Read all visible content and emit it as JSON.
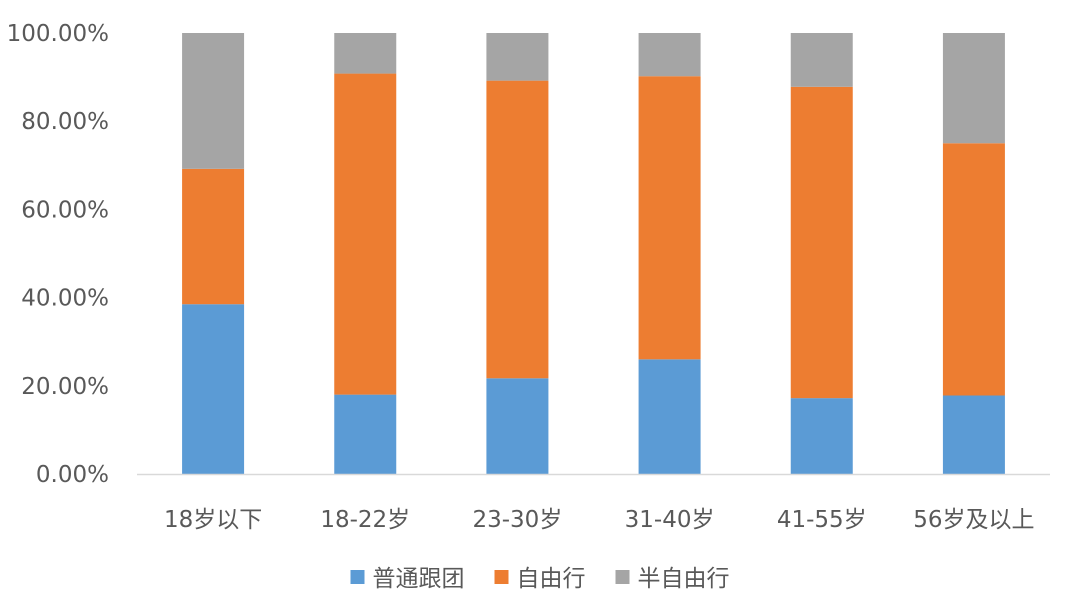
{
  "chart_data": {
    "type": "bar",
    "stacked": true,
    "categories": [
      "18岁以下",
      "18-22岁",
      "23-30岁",
      "31-40岁",
      "41-55岁",
      "56岁及以上"
    ],
    "series": [
      {
        "name": "普通跟团",
        "color": "#5b9bd5",
        "values": [
          38.5,
          18.0,
          21.7,
          26.0,
          17.2,
          17.8
        ]
      },
      {
        "name": "自由行",
        "color": "#ed7d31",
        "values": [
          30.7,
          72.8,
          67.5,
          64.2,
          70.6,
          57.2
        ]
      },
      {
        "name": "半自由行",
        "color": "#a5a5a5",
        "values": [
          30.8,
          9.2,
          10.8,
          9.8,
          12.2,
          25.0
        ]
      }
    ],
    "yticks": [
      "0.00%",
      "20.00%",
      "40.00%",
      "60.00%",
      "80.00%",
      "100.00%"
    ],
    "ylim": [
      0,
      100
    ],
    "grid": false,
    "legend_position": "bottom",
    "axis_color": "#d9d9d9",
    "text_color": "#595959"
  }
}
